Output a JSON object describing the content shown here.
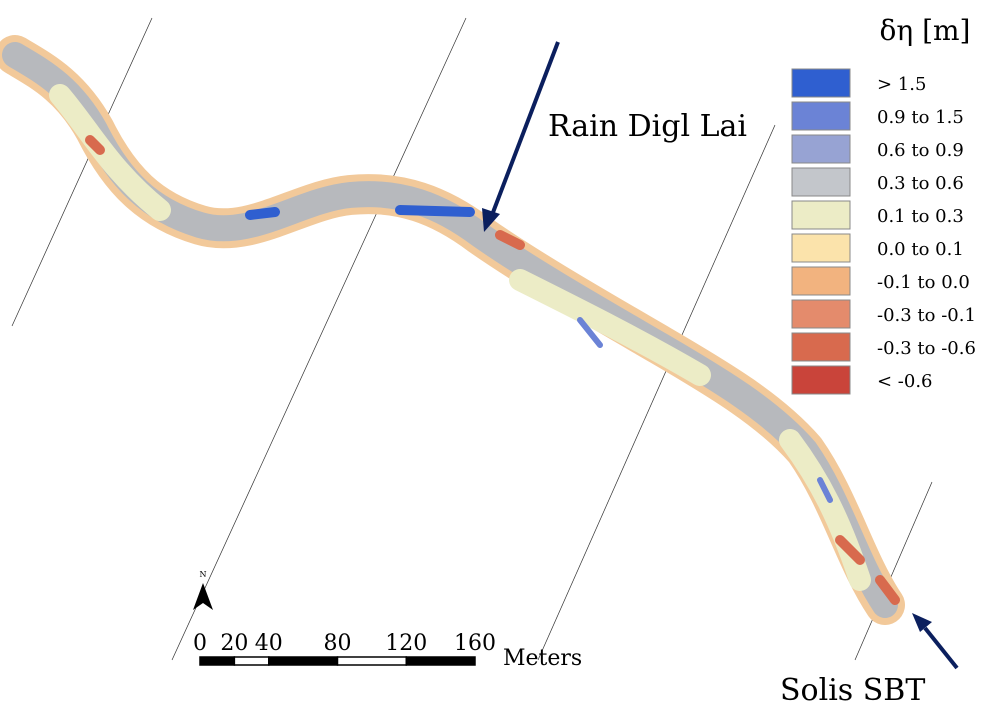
{
  "legend": {
    "title": "δη [m]",
    "items": [
      {
        "label": "> 1.5",
        "color": "#2f5fd0"
      },
      {
        "label": "0.9 to 1.5",
        "color": "#6b83d6"
      },
      {
        "label": "0.6 to 0.9",
        "color": "#97a3d3"
      },
      {
        "label": "0.3 to 0.6",
        "color": "#c3c6cb"
      },
      {
        "label": "0.1 to 0.3",
        "color": "#ececc6"
      },
      {
        "label": "0.0 to 0.1",
        "color": "#fbe3ab"
      },
      {
        "label": "-0.1 to 0.0",
        "color": "#f2b37f"
      },
      {
        "label": "-0.3 to -0.1",
        "color": "#e48b6c"
      },
      {
        "label": "-0.3 to -0.6",
        "color": "#d86a4e"
      },
      {
        "label": "< -0.6",
        "color": "#c9443a"
      }
    ]
  },
  "annotations": {
    "upstream": "Rain Digl Lai",
    "downstream": "Solis SBT"
  },
  "north": "N",
  "scale": {
    "ticks": [
      0,
      20,
      40,
      80,
      120,
      160
    ],
    "unit": "Meters"
  }
}
